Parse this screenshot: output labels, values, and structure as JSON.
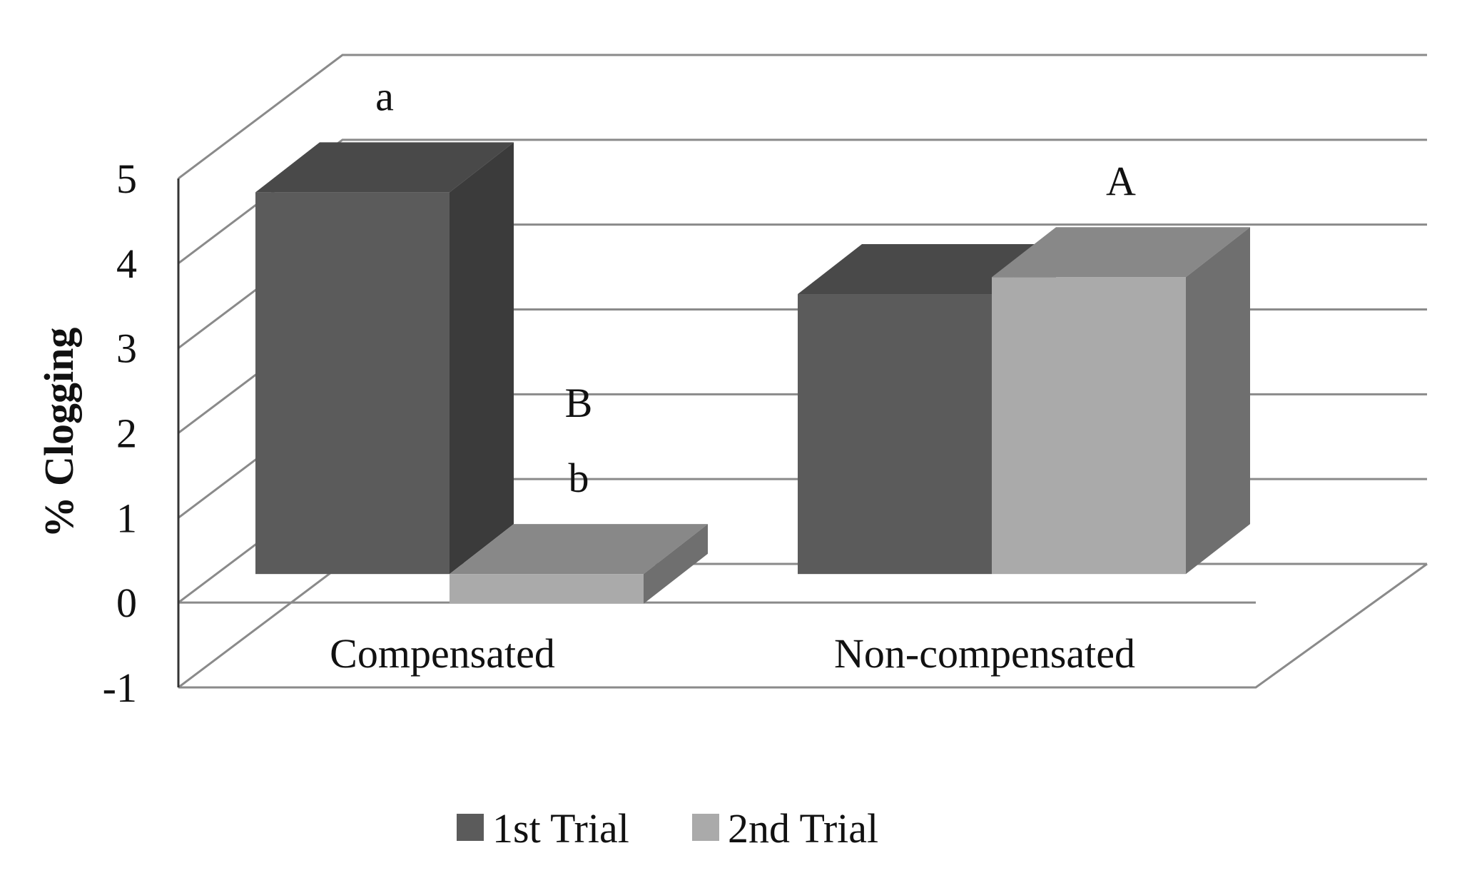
{
  "chart_data": {
    "type": "bar",
    "title": "",
    "xlabel": "",
    "ylabel": "% Clogging",
    "ylim": [
      -1,
      5
    ],
    "yticks": [
      "5",
      "4",
      "3",
      "2",
      "1",
      "0",
      "-1"
    ],
    "grid": true,
    "legend_position": "bottom",
    "categories": [
      "Compensated",
      "Non-compensated"
    ],
    "series": [
      {
        "name": "1st Trial",
        "values": [
          4.5,
          3.3
        ],
        "labels": [
          "a",
          ""
        ],
        "color": "#5b5b5b"
      },
      {
        "name": "2nd Trial",
        "values": [
          -0.35,
          3.5
        ],
        "labels": [
          "b",
          "A"
        ],
        "color": "#aaaaaa"
      }
    ],
    "extra_annotations": [
      {
        "text": "B",
        "category_index": 0,
        "series_index": 1
      }
    ]
  }
}
